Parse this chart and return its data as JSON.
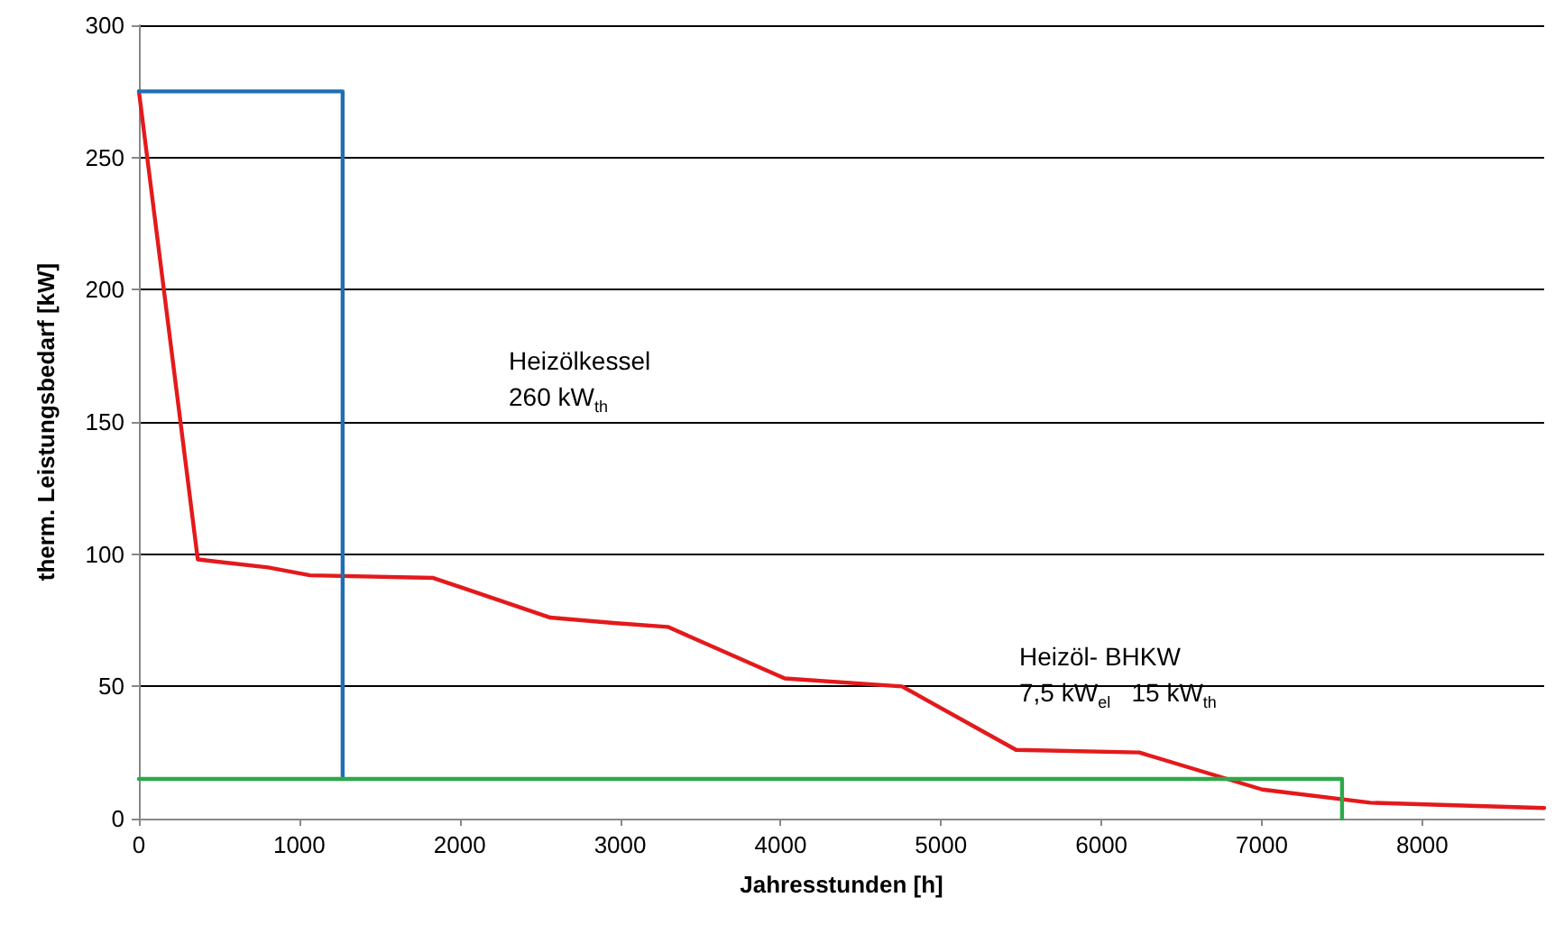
{
  "chart_data": {
    "type": "line",
    "xlabel": "Jahresstunden [h]",
    "ylabel": "therm. Leistungsbedarf [kW]",
    "xlim": [
      0,
      8760
    ],
    "xticks": [
      0,
      1000,
      2000,
      3000,
      4000,
      5000,
      6000,
      7000,
      8000
    ],
    "ylim": [
      0,
      300
    ],
    "yticks": [
      0,
      50,
      100,
      150,
      200,
      250,
      300
    ],
    "grid": "y",
    "marker": "none",
    "line_style": "solid",
    "annotations": [
      "Heizölkessel\n260 kW$_{th}$",
      "Heizöl- BHKW\n7,5 kW$_{el}$   15 kW$_{th}$"
    ],
    "series": [
      {
        "color": "#e31a1c",
        "x": [
          0,
          367,
          805,
          1067,
          1835,
          2565,
          2958,
          3297,
          4026,
          4757,
          5468,
          6236,
          7003,
          7677,
          8760
        ],
        "values": [
          275,
          98,
          95,
          92,
          91,
          76,
          74,
          72.5,
          53,
          50,
          26,
          25,
          11,
          6,
          4
        ]
      },
      {
        "color": "#1f6fb4",
        "x": [
          0,
          1270,
          1270
        ],
        "values": [
          275,
          275,
          15
        ]
      },
      {
        "color": "#2ea84a",
        "x": [
          0,
          7500,
          7500
        ],
        "values": [
          15,
          15,
          0
        ]
      }
    ]
  }
}
